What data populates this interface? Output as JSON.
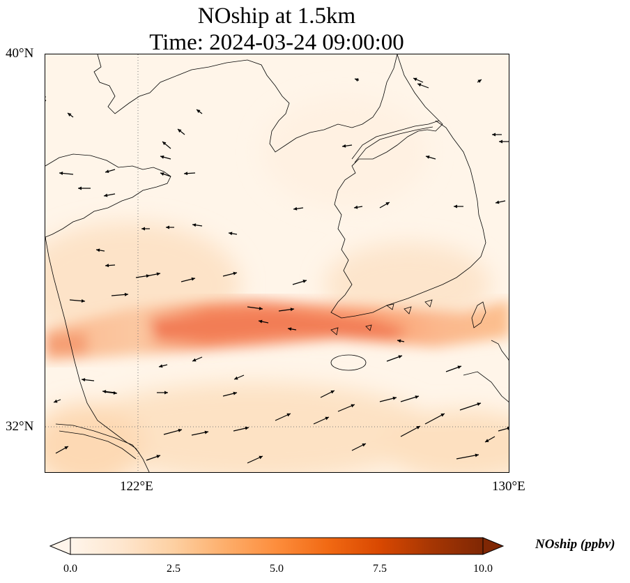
{
  "title": {
    "line1": "NOship at 1.5km",
    "line2": "Time: 2024-03-24 09:00:00"
  },
  "map": {
    "lat_labels": [
      "40°N",
      "32°N"
    ],
    "lon_labels": [
      "122°E",
      "130°E"
    ],
    "lon_range": [
      120,
      130
    ],
    "lat_range": [
      31,
      40
    ],
    "gridlines": "dotted"
  },
  "colorbar": {
    "label": "NOship (ppbv)",
    "ticks": [
      "0.0",
      "2.5",
      "5.0",
      "7.5",
      "10.0"
    ],
    "range": [
      0,
      10
    ],
    "colormap": [
      "#fff5eb",
      "#fee6ce",
      "#fdd0a2",
      "#fdae6b",
      "#fd8d3c",
      "#f16913",
      "#d94801",
      "#a63603",
      "#7f2704"
    ],
    "extend": "both"
  },
  "colors": {
    "background_low": "#fff5e9",
    "plume": "#f4845b",
    "coastline": "#000000",
    "arrows": "#000000"
  }
}
